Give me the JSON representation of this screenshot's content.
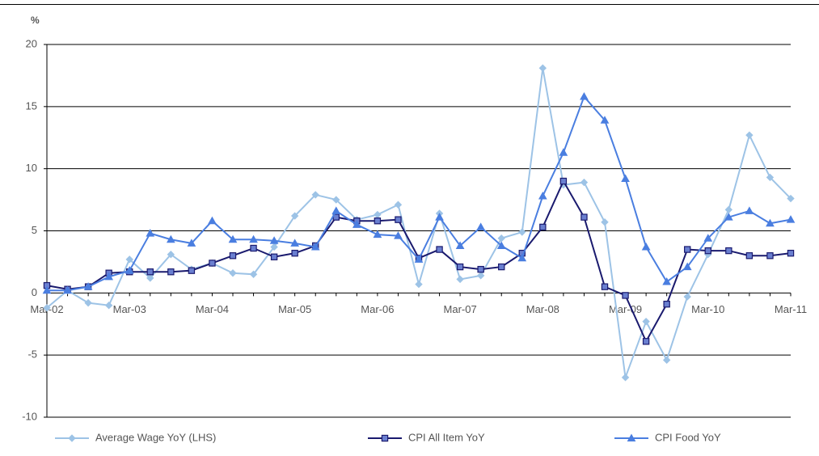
{
  "chart_data": {
    "type": "line",
    "y_label": "%",
    "categories": [
      "Mar-02",
      null,
      null,
      null,
      "Mar-03",
      null,
      null,
      null,
      "Mar-04",
      null,
      null,
      null,
      "Mar-05",
      null,
      null,
      null,
      "Mar-06",
      null,
      null,
      null,
      "Mar-07",
      null,
      null,
      null,
      "Mar-08",
      null,
      null,
      null,
      "Mar-09",
      null,
      null,
      null,
      "Mar-10",
      null,
      null,
      null,
      "Mar-11"
    ],
    "series": [
      {
        "name": "Average Wage YoY (LHS)",
        "color": "#9dc3e6",
        "marker": "diamond",
        "values": [
          -1.2,
          0.2,
          -0.8,
          -1.0,
          2.7,
          1.2,
          3.1,
          1.9,
          2.4,
          1.6,
          1.5,
          3.7,
          6.2,
          7.9,
          7.5,
          5.9,
          6.3,
          7.1,
          0.7,
          6.4,
          1.1,
          1.4,
          4.4,
          4.9,
          18.1,
          8.7,
          8.9,
          5.7,
          -6.8,
          -2.3,
          -5.4,
          -0.3,
          3.1,
          6.7,
          12.7,
          9.3,
          7.6
        ]
      },
      {
        "name": "CPI All Item YoY",
        "color": "#1a1a6e",
        "marker": "square",
        "values": [
          0.6,
          0.3,
          0.5,
          1.6,
          1.7,
          1.7,
          1.7,
          1.8,
          2.4,
          3.0,
          3.6,
          2.9,
          3.2,
          3.8,
          6.1,
          5.8,
          5.8,
          5.9,
          2.8,
          3.5,
          2.1,
          1.9,
          2.1,
          3.2,
          5.3,
          9.0,
          6.1,
          0.5,
          -0.2,
          -3.9,
          -0.9,
          3.5,
          3.4,
          3.4,
          3.0,
          3.0,
          3.2
        ]
      },
      {
        "name": "CPI Food YoY",
        "color": "#4a7ee0",
        "marker": "triangle",
        "values": [
          0.2,
          0.2,
          0.5,
          1.3,
          1.8,
          4.8,
          4.3,
          4.0,
          5.8,
          4.3,
          4.3,
          4.2,
          4.0,
          3.7,
          6.6,
          5.5,
          4.7,
          4.6,
          2.7,
          6.1,
          3.8,
          5.3,
          3.8,
          2.8,
          7.8,
          11.3,
          15.8,
          13.9,
          9.2,
          3.7,
          0.9,
          2.1,
          4.4,
          6.1,
          6.6,
          5.6,
          5.9
        ]
      }
    ],
    "ylim": [
      -10,
      20
    ],
    "yticks": [
      -10,
      -5,
      0,
      5,
      10,
      15,
      20
    ],
    "grid": true
  }
}
